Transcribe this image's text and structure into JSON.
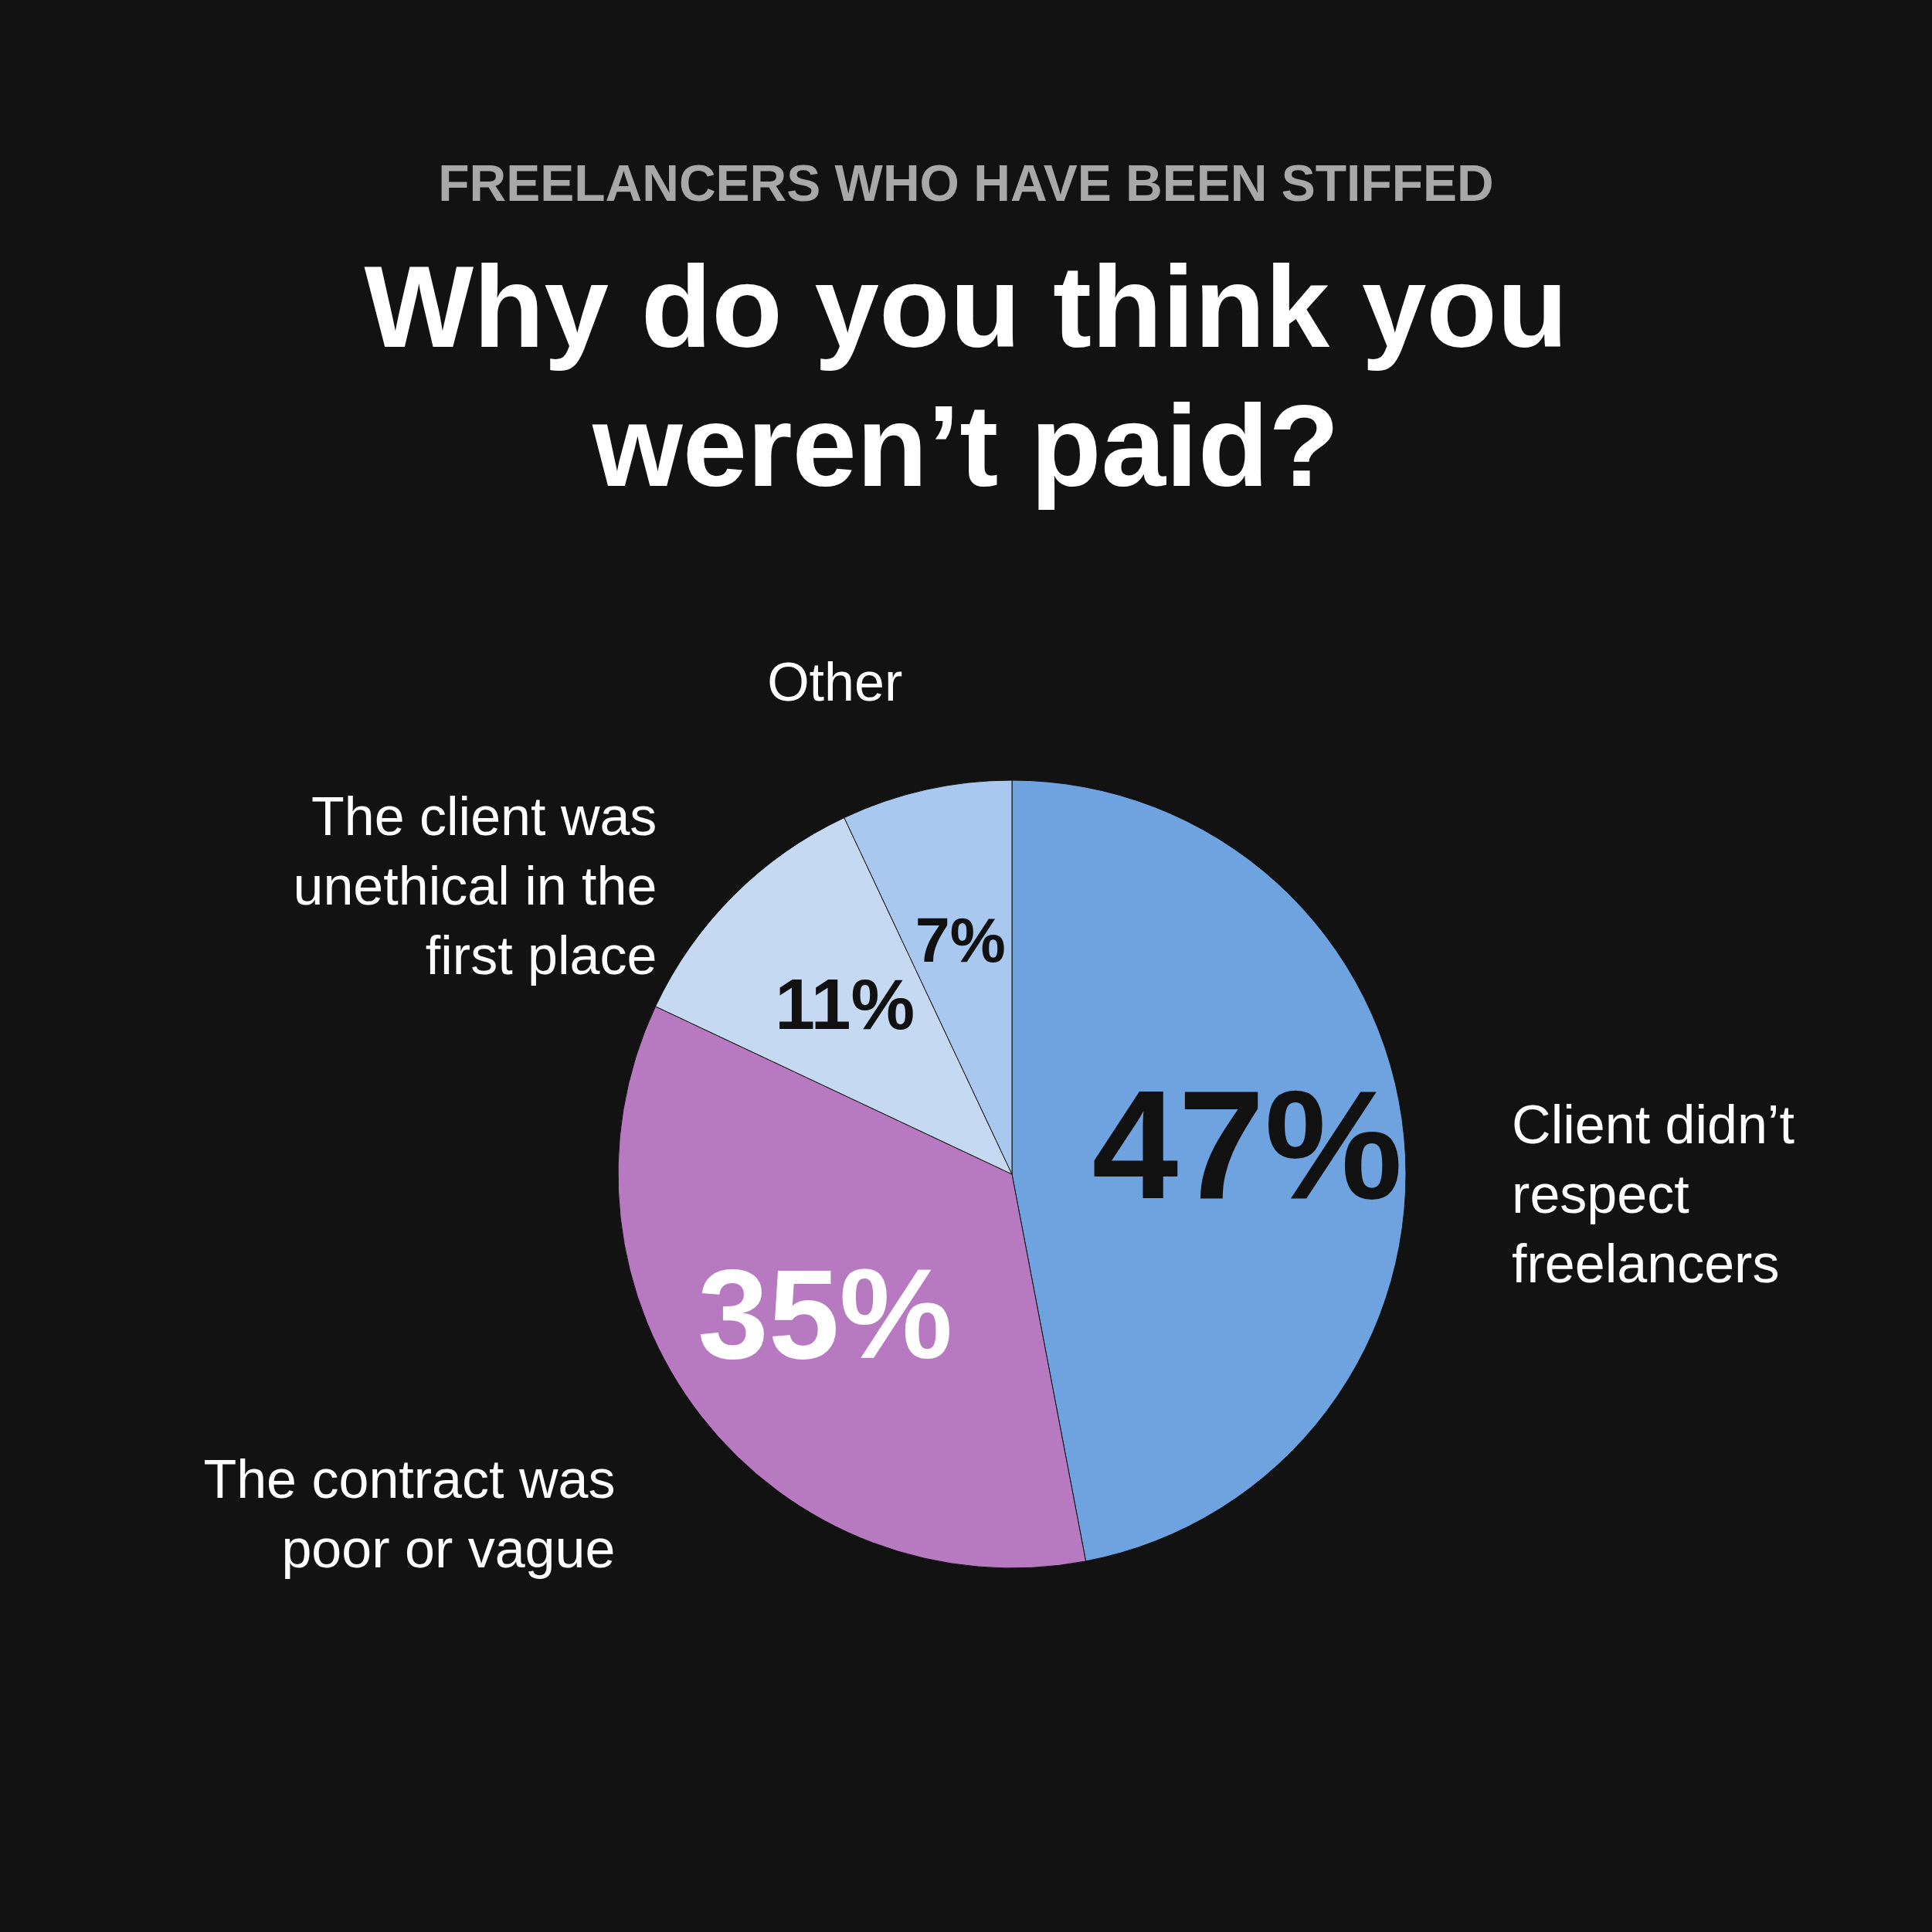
{
  "chart_data": {
    "type": "pie",
    "subtitle": "FREELANCERS WHO HAVE BEEN STIFFED",
    "title": "Why do you think you weren’t paid?",
    "categories": [
      "Client didn’t respect freelancers",
      "The contract was poor or vague",
      "The client was unethical in the first place",
      "Other"
    ],
    "values": [
      47,
      35,
      11,
      7
    ],
    "colors": [
      "#6fa3e0",
      "#b77ac0",
      "#c5d9f2",
      "#a9c8ef"
    ],
    "value_labels": [
      "47%",
      "35%",
      "11%",
      "7%"
    ]
  }
}
